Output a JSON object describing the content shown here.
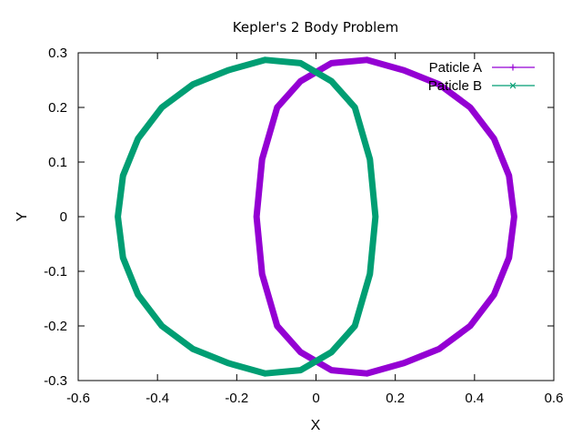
{
  "chart_data": {
    "type": "line",
    "title": "Kepler's 2 Body Problem",
    "xlabel": "X",
    "ylabel": "Y",
    "xlim": [
      -0.6,
      0.6
    ],
    "ylim": [
      -0.3,
      0.3
    ],
    "xticks": [
      -0.6,
      -0.4,
      -0.2,
      0,
      0.2,
      0.4,
      0.6
    ],
    "yticks": [
      -0.3,
      -0.2,
      -0.1,
      0,
      0.1,
      0.2,
      0.3
    ],
    "xtick_labels": [
      "-0.6",
      "-0.4",
      "-0.2",
      "0",
      "0.2",
      "0.4",
      "0.6"
    ],
    "ytick_labels": [
      "-0.3",
      "-0.2",
      "-0.1",
      "0",
      "0.1",
      "0.2",
      "0.3"
    ],
    "grid": false,
    "legend_position": "top-right",
    "series": [
      {
        "name": "Paticle A",
        "color": "#9400d3",
        "marker": "plus",
        "x": [
          0.5,
          0.487,
          0.449,
          0.389,
          0.311,
          0.222,
          0.128,
          0.039,
          -0.039,
          -0.098,
          -0.136,
          -0.15,
          -0.136,
          -0.098,
          -0.039,
          0.039,
          0.128,
          0.222,
          0.311,
          0.389,
          0.449,
          0.487,
          0.5
        ],
        "y": [
          0,
          0.075,
          0.143,
          0.2,
          0.242,
          0.268,
          0.287,
          0.281,
          0.248,
          0.2,
          0.105,
          0,
          -0.105,
          -0.2,
          -0.248,
          -0.281,
          -0.287,
          -0.268,
          -0.242,
          -0.2,
          -0.143,
          -0.075,
          0
        ]
      },
      {
        "name": "Paticle B",
        "color": "#009e73",
        "marker": "cross",
        "x": [
          -0.5,
          -0.487,
          -0.449,
          -0.389,
          -0.311,
          -0.222,
          -0.128,
          -0.039,
          0.039,
          0.098,
          0.136,
          0.15,
          0.136,
          0.098,
          0.039,
          -0.039,
          -0.128,
          -0.222,
          -0.311,
          -0.389,
          -0.449,
          -0.487,
          -0.5
        ],
        "y": [
          0,
          0.075,
          0.143,
          0.2,
          0.242,
          0.268,
          0.287,
          0.281,
          0.248,
          0.2,
          0.105,
          0,
          -0.105,
          -0.2,
          -0.248,
          -0.281,
          -0.287,
          -0.268,
          -0.242,
          -0.2,
          -0.143,
          -0.075,
          0
        ]
      }
    ]
  }
}
